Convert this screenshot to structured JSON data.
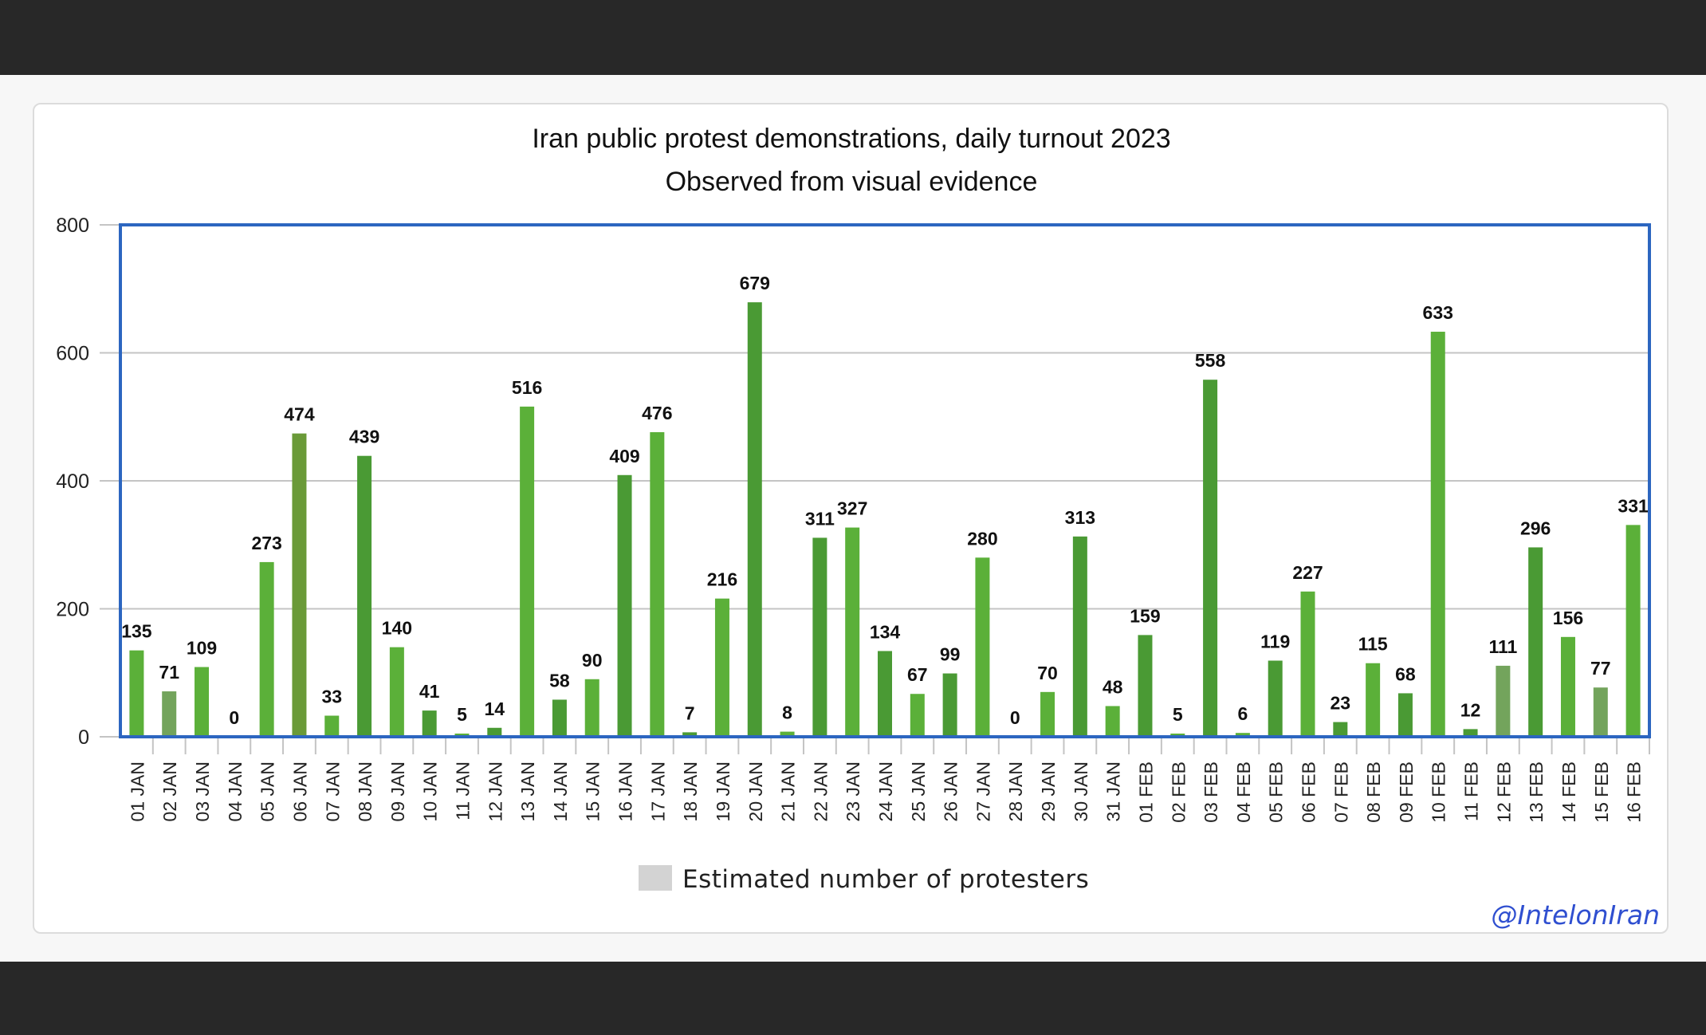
{
  "colors": {
    "bar_light": "#5bb039",
    "bar_dark": "#4a9a34",
    "bar_olive": "#6a9a38",
    "bar_muted": "#73a45c",
    "legend_swatch": "#d3d3d3",
    "plot_border": "#2c66c0",
    "grid": "#c4c4c4",
    "watermark": "#2f4fd0"
  },
  "watermark": "@IntelonIran",
  "chart_data": {
    "type": "bar",
    "title": "Iran public protest demonstrations, daily turnout 2023",
    "subtitle": "Observed from visual evidence",
    "xlabel": "",
    "ylabel": "",
    "ylim": [
      0,
      800
    ],
    "yticks": [
      0,
      200,
      400,
      600,
      800
    ],
    "grid": true,
    "legend": {
      "position": "bottom",
      "label": "Estimated number of protesters"
    },
    "data_labels": true,
    "categories": [
      "01 JAN",
      "02 JAN",
      "03 JAN",
      "04 JAN",
      "05 JAN",
      "06 JAN",
      "07 JAN",
      "08 JAN",
      "09 JAN",
      "10 JAN",
      "11 JAN",
      "12 JAN",
      "13 JAN",
      "14 JAN",
      "15 JAN",
      "16 JAN",
      "17 JAN",
      "18 JAN",
      "19 JAN",
      "20 JAN",
      "21 JAN",
      "22 JAN",
      "23 JAN",
      "24 JAN",
      "25 JAN",
      "26 JAN",
      "27 JAN",
      "28 JAN",
      "29 JAN",
      "30 JAN",
      "31 JAN",
      "01 FEB",
      "02 FEB",
      "03 FEB",
      "04 FEB",
      "05 FEB",
      "06 FEB",
      "07 FEB",
      "08 FEB",
      "09 FEB",
      "10 FEB",
      "11 FEB",
      "12 FEB",
      "13 FEB",
      "14 FEB",
      "15 FEB",
      "16 FEB"
    ],
    "series": [
      {
        "name": "Estimated number of protesters",
        "values": [
          135,
          71,
          109,
          0,
          273,
          474,
          33,
          439,
          140,
          41,
          5,
          14,
          516,
          58,
          90,
          409,
          476,
          7,
          216,
          679,
          8,
          311,
          327,
          134,
          67,
          99,
          280,
          0,
          70,
          313,
          48,
          159,
          5,
          558,
          6,
          119,
          227,
          23,
          115,
          68,
          633,
          12,
          111,
          296,
          156,
          77,
          331
        ]
      }
    ]
  }
}
